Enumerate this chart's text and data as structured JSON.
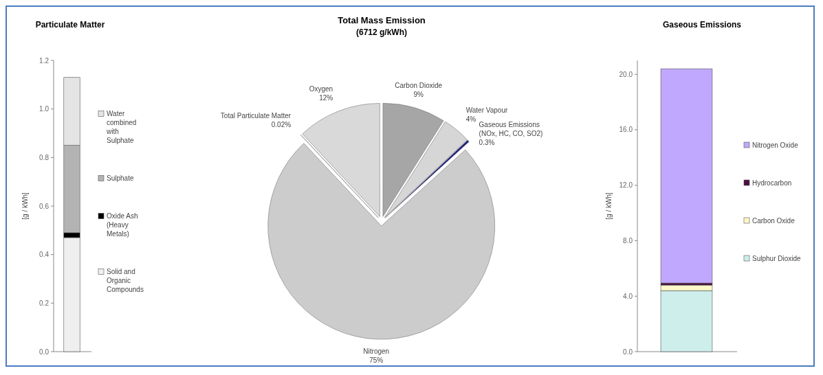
{
  "chart_data": [
    {
      "type": "bar",
      "title": "Particulate Matter",
      "ylabel": "[g / kWh]",
      "categories": [
        null
      ],
      "stacked": true,
      "legend": "right",
      "ylim": [
        0,
        1.2
      ],
      "yticks": [
        {
          "value": 0,
          "label": "0.0"
        },
        {
          "value": 0.2,
          "label": "0.2"
        },
        {
          "value": 0.4,
          "label": "0.4"
        },
        {
          "value": 0.6,
          "label": "0.6"
        },
        {
          "value": 0.8,
          "label": "0.8"
        },
        {
          "value": 1.0,
          "label": "1.0"
        },
        {
          "value": 1.2,
          "label": "1.2"
        }
      ],
      "series": [
        {
          "name": "Solid and Organic Compounds",
          "color": "#efefef",
          "values": [
            0.47
          ]
        },
        {
          "name": "Oxide Ash (Heavy Metals)",
          "color": "#000000",
          "values": [
            0.02
          ]
        },
        {
          "name": "Sulphate",
          "color": "#b3b3b3",
          "values": [
            0.36
          ]
        },
        {
          "name": "Water combined with Sulphate",
          "color": "#e4e4e4",
          "values": [
            0.28
          ]
        }
      ]
    },
    {
      "type": "pie",
      "title": "Total Mass Emission",
      "subtitle": "(6712 g/kWh)",
      "categories": [
        "Carbon Dioxide",
        "Water Vapour",
        "Gaseous Emissions (NOx, HC, CO, SO2)",
        "Nitrogen",
        "Total Particulate Matter",
        "Oxygen"
      ],
      "values": [
        9,
        4,
        0.3,
        75,
        0.02,
        12
      ],
      "value_labels": [
        "9%",
        "4%",
        "0.3%",
        "75%",
        "0.02%",
        "12%"
      ],
      "colors": [
        "#a6a6a6",
        "#d6d6d6",
        "#1f1f80",
        "#cccccc",
        "#e0e0e0",
        "#d9d9d9"
      ]
    },
    {
      "type": "bar",
      "title": "Gaseous Emissions",
      "ylabel": "[g / kWh]",
      "categories": [
        null
      ],
      "stacked": true,
      "legend": "right",
      "ylim": [
        0,
        21
      ],
      "yticks": [
        {
          "value": 0,
          "label": "0.0"
        },
        {
          "value": 4,
          "label": "4.0"
        },
        {
          "value": 8,
          "label": "8.0"
        },
        {
          "value": 12,
          "label": "12.0"
        },
        {
          "value": 16,
          "label": "16.0"
        },
        {
          "value": 20,
          "label": "20.0"
        }
      ],
      "series": [
        {
          "name": "Sulphur Dioxide",
          "color": "#cdeeea",
          "values": [
            4.4
          ]
        },
        {
          "name": "Carbon Oxide",
          "color": "#fff8c8",
          "values": [
            0.4
          ]
        },
        {
          "name": "Hydrocarbon",
          "color": "#4b0f3f",
          "values": [
            0.15
          ]
        },
        {
          "name": "Nitrogen Oxide",
          "color": "#c0a8ff",
          "values": [
            15.45
          ]
        }
      ]
    }
  ]
}
